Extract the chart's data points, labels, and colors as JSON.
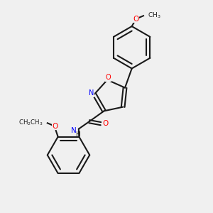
{
  "background_color": "#f0f0f0",
  "bond_color": "#1a1a1a",
  "atom_colors": {
    "O": "#ff0000",
    "N": "#0000ff",
    "C": "#1a1a1a"
  },
  "figsize": [
    3.0,
    3.0
  ],
  "dpi": 100
}
